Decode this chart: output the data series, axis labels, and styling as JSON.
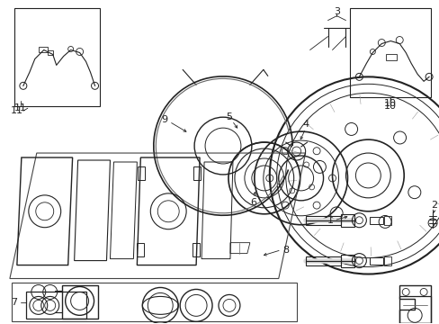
{
  "bg_color": "#ffffff",
  "line_color": "#222222",
  "gray": "#888888",
  "light_gray": "#cccccc",
  "figsize": [
    4.89,
    3.6
  ],
  "dpi": 100
}
